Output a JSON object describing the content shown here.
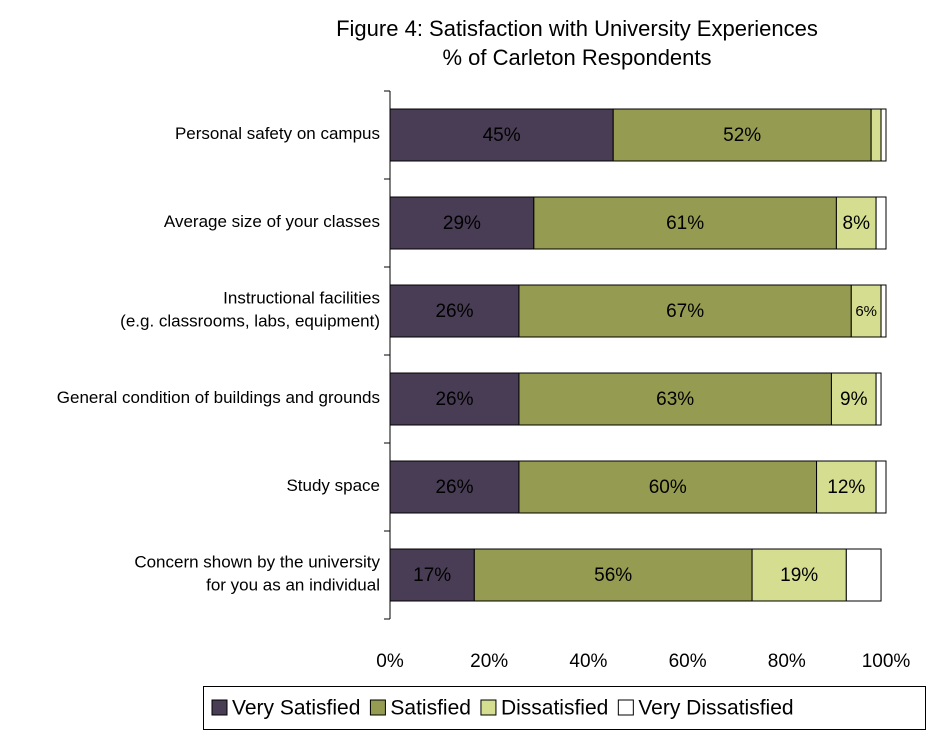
{
  "chart_data": {
    "type": "stacked_barh",
    "title": "Figure 4: Satisfaction with University Experiences",
    "subtitle": "% of Carleton Respondents",
    "categories": [
      [
        "Personal safety on campus"
      ],
      [
        "Average size of your classes"
      ],
      [
        "Instructional facilities",
        "(e.g. classrooms, labs, equipment)"
      ],
      [
        "General condition of buildings and grounds"
      ],
      [
        "Study space"
      ],
      [
        "Concern shown by the university",
        "for you as an individual"
      ]
    ],
    "series": [
      {
        "name": "Very Satisfied",
        "color": "#483d54",
        "label_color": "#ffffff",
        "values": [
          45,
          29,
          26,
          26,
          26,
          17
        ],
        "value_labels": [
          "45%",
          "29%",
          "26%",
          "26%",
          "26%",
          "17%"
        ]
      },
      {
        "name": "Satisfied",
        "color": "#959b51",
        "label_color": "#000000",
        "values": [
          52,
          61,
          67,
          63,
          60,
          56
        ],
        "value_labels": [
          "52%",
          "61%",
          "67%",
          "63%",
          "60%",
          "56%"
        ]
      },
      {
        "name": "Dissatisfied",
        "color": "#d5dd91",
        "label_color": "#000000",
        "values": [
          2,
          8,
          6,
          9,
          12,
          19
        ],
        "value_labels": [
          null,
          "8%",
          "6%",
          "9%",
          "12%",
          "19%"
        ]
      },
      {
        "name": "Very Dissatisfied",
        "color": "#ffffff",
        "values": [
          1,
          2,
          1,
          1,
          2,
          7
        ]
      }
    ],
    "xlim": [
      0,
      100
    ],
    "xticks": [
      {
        "value": 0,
        "label": "0%"
      },
      {
        "value": 20,
        "label": "20%"
      },
      {
        "value": 40,
        "label": "40%"
      },
      {
        "value": 60,
        "label": "60%"
      },
      {
        "value": 80,
        "label": "80%"
      },
      {
        "value": 100,
        "label": "100%"
      }
    ],
    "grid": false,
    "legend": "bottom"
  }
}
